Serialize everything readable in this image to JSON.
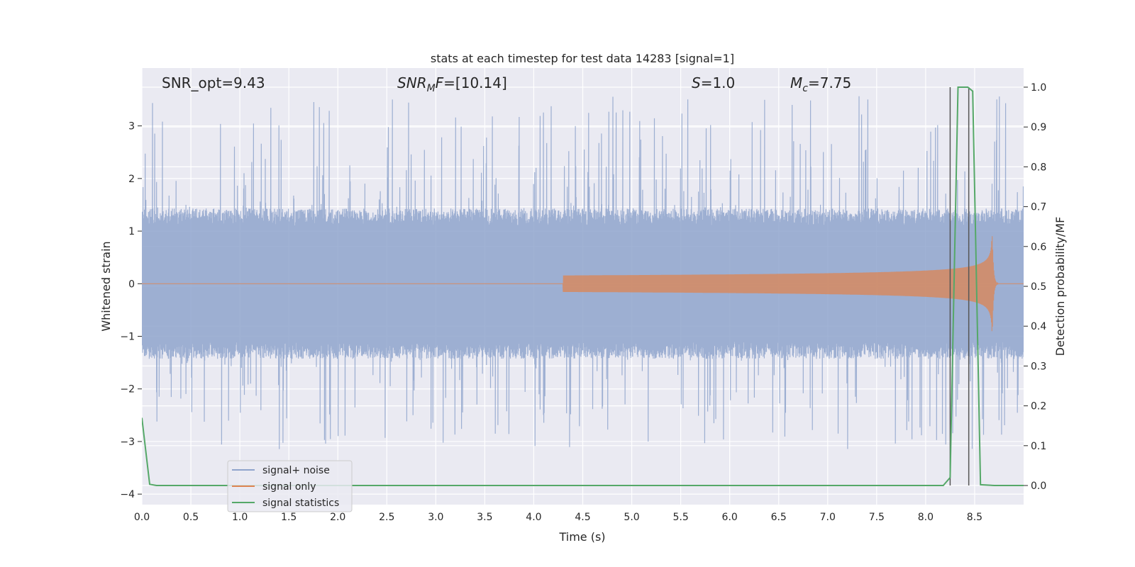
{
  "chart_data": {
    "type": "line",
    "title": "stats at each timestep for test data 14283 [signal=1]",
    "xlabel": "Time (s)",
    "ylabel_left": "Whitened strain",
    "ylabel_right": "Detection probability/MF",
    "xlim": [
      0.0,
      9.0
    ],
    "ylim_left": [
      -4.2,
      4.1
    ],
    "ylim_right": [
      -0.048,
      1.048
    ],
    "x_ticks": [
      "0.0",
      "0.5",
      "1.0",
      "1.5",
      "2.0",
      "2.5",
      "3.0",
      "3.5",
      "4.0",
      "4.5",
      "5.0",
      "5.5",
      "6.0",
      "6.5",
      "7.0",
      "7.5",
      "8.0",
      "8.5"
    ],
    "y_ticks_left": [
      "3",
      "2",
      "1",
      "0",
      "−1",
      "−2",
      "−3",
      "−4"
    ],
    "y_ticks_right": [
      "1.0",
      "0.9",
      "0.8",
      "0.7",
      "0.6",
      "0.5",
      "0.4",
      "0.3",
      "0.2",
      "0.1",
      "0.0"
    ],
    "grid": true,
    "legend_position": "lower-left",
    "annotations": {
      "snr_opt": "SNR_opt=9.43",
      "snr_mf": "=[10.14]",
      "s_value": "=1.0",
      "mc_value": "=7.75"
    },
    "noise_band": {
      "typical_max": 1.3,
      "typical_min": -1.3,
      "peak_max": 3.6,
      "peak_min": -3.15
    },
    "signal_chirp": {
      "start_time": 4.3,
      "merger_time": 8.68,
      "peak_amplitude": 0.98
    },
    "vertical_markers": [
      8.25,
      8.44
    ],
    "series": [
      {
        "name": "signal+ noise",
        "color": "#8fa4cc"
      },
      {
        "name": "signal only",
        "color": "#dd8452"
      },
      {
        "name": "signal statistics",
        "color": "#55a868",
        "axis": "right",
        "x": [
          0.0,
          0.08,
          0.15,
          8.18,
          8.25,
          8.33,
          8.43,
          8.48,
          8.56,
          8.7,
          9.0
        ],
        "y": [
          0.17,
          0.003,
          0.0,
          0.0,
          0.02,
          1.0,
          1.0,
          0.99,
          0.002,
          0.0,
          0.0
        ]
      }
    ]
  }
}
